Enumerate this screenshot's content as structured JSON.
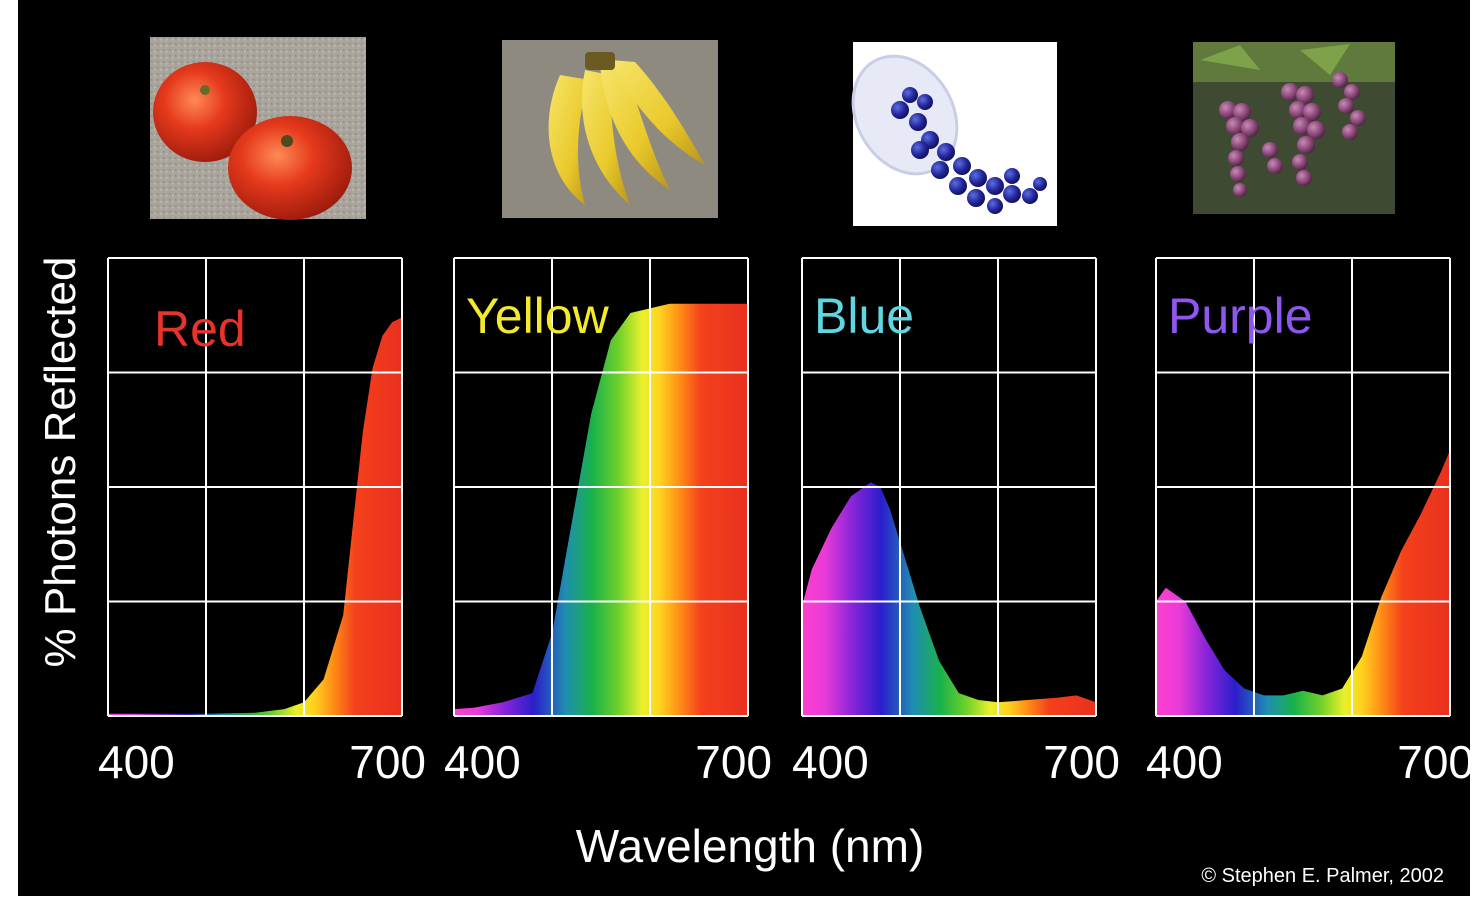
{
  "chart_data": {
    "type": "area",
    "ylabel": "% Photons Reflected",
    "xlabel": "Wavelength (nm)",
    "xlim": [
      400,
      700
    ],
    "ylim": [
      0,
      100
    ],
    "grid": true,
    "copyright": "© Stephen E. Palmer, 2002",
    "panels": [
      {
        "name": "Red",
        "label_color": "#e8332a",
        "photo": "tomato-photo",
        "x_ticks": [
          "400",
          "700"
        ],
        "x": [
          400,
          450,
          500,
          550,
          580,
          600,
          620,
          640,
          650,
          660,
          670,
          680,
          690,
          700
        ],
        "values": [
          0.5,
          0.5,
          0.5,
          0.7,
          1.5,
          3,
          8,
          22,
          42,
          62,
          76,
          83,
          86,
          87
        ]
      },
      {
        "name": "Yellow",
        "label_color": "#f2ea2a",
        "photo": "banana-photo",
        "x_ticks": [
          "400",
          "700"
        ],
        "x": [
          400,
          420,
          450,
          480,
          500,
          520,
          540,
          560,
          580,
          600,
          620,
          650,
          700
        ],
        "values": [
          1.5,
          1.8,
          3,
          5,
          18,
          42,
          66,
          82,
          88,
          89,
          90,
          90,
          90
        ]
      },
      {
        "name": "Blue",
        "label_color": "#5fd6e0",
        "photo": "blueberry-photo",
        "x_ticks": [
          "400",
          "700"
        ],
        "x": [
          400,
          410,
          430,
          450,
          470,
          480,
          490,
          500,
          520,
          540,
          560,
          580,
          600,
          630,
          660,
          680,
          700
        ],
        "values": [
          24,
          32,
          41,
          48,
          51,
          50,
          45,
          38,
          24,
          12,
          5,
          3.5,
          3,
          3.5,
          4,
          4.5,
          3
        ]
      },
      {
        "name": "Purple",
        "label_color": "#9057f0",
        "photo": "grapes-photo",
        "x_ticks": [
          "400",
          "700"
        ],
        "x": [
          400,
          410,
          430,
          450,
          470,
          490,
          510,
          530,
          550,
          570,
          590,
          610,
          630,
          650,
          670,
          690,
          700
        ],
        "values": [
          25,
          28,
          25,
          17,
          10,
          6,
          4.5,
          4.5,
          5.5,
          4.5,
          6,
          13,
          26,
          36,
          44,
          53,
          58
        ]
      }
    ]
  }
}
